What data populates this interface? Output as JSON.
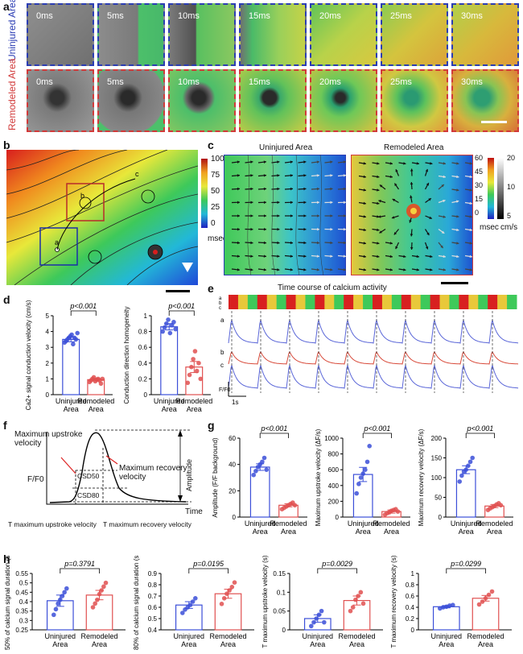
{
  "panel_a": {
    "label": "a",
    "rows": [
      {
        "name": "Uninjured Area",
        "color": "#2b3db3"
      },
      {
        "name": "Remodeled Area",
        "color": "#d23a3a"
      }
    ],
    "times": [
      "0ms",
      "5ms",
      "10ms",
      "15ms",
      "20ms",
      "25ms",
      "30ms"
    ]
  },
  "panel_b": {
    "label": "b",
    "colorbar_ticks": [
      "100",
      "75",
      "50",
      "25",
      "0"
    ],
    "colorbar_unit": "msec",
    "points": [
      "a",
      "b",
      "c"
    ]
  },
  "panel_c": {
    "label": "c",
    "left_title": "Uninjured Area",
    "right_title": "Remodeled Area",
    "cbar1_ticks": [
      "60",
      "45",
      "30",
      "15",
      "0"
    ],
    "cbar2_ticks": [
      "20",
      "10",
      "5"
    ],
    "cbar1_unit": "msec",
    "cbar2_unit": "cm/s"
  },
  "panel_d": {
    "label": "d"
  },
  "panel_e": {
    "label": "e",
    "title": "Time course of calcium activity",
    "trace_labels": [
      "a",
      "b",
      "c"
    ],
    "heat_labels": [
      "a",
      "b",
      "c"
    ],
    "ylabel": "F/F0",
    "scale": "1s"
  },
  "panel_f": {
    "label": "f",
    "upstroke": "Maximum upstroke velocity",
    "recovery": "Maximum recovery velocity",
    "amplitude": "Amplitude",
    "csd50": "CSD50",
    "csd80": "CSD80",
    "ylabel": "F/F0",
    "xlabel": "Time",
    "t_up": "T maximum upstroke velocity",
    "t_rec": "T maximum recovery velocity"
  },
  "panel_g": {
    "label": "g"
  },
  "panel_h": {
    "label": "h"
  },
  "chart_data": [
    {
      "id": "d1",
      "type": "bar",
      "categories": [
        "Uninjured Area",
        "Remodeled Area"
      ],
      "values": [
        3.5,
        0.95
      ],
      "errors": [
        0.15,
        0.08
      ],
      "ylabel": "Ca2+ signal conduction velocity (cm/s)",
      "ylim": [
        0,
        5
      ],
      "yticks": [
        0,
        1,
        2,
        3,
        4,
        5
      ],
      "pvalue": "p<0.001",
      "points": [
        [
          3.3,
          3.4,
          3.5,
          3.6,
          3.7,
          3.8,
          3.2,
          3.6,
          3.5,
          3.9
        ],
        [
          0.8,
          0.9,
          1.0,
          1.1,
          0.85,
          0.95,
          1.0,
          0.9,
          0.7,
          1.0
        ]
      ]
    },
    {
      "id": "d2",
      "type": "bar",
      "categories": [
        "Uninjured Area",
        "Remodeled Area"
      ],
      "values": [
        0.86,
        0.35
      ],
      "errors": [
        0.04,
        0.07
      ],
      "ylabel": "Conduction direction homogeneity",
      "ylim": [
        0,
        1.0
      ],
      "yticks": [
        0,
        0.2,
        0.4,
        0.6,
        0.8,
        1.0
      ],
      "pvalue": "p<0.001",
      "points": [
        [
          0.8,
          0.85,
          0.9,
          0.95,
          0.78,
          0.88,
          0.92,
          0.83
        ],
        [
          0.15,
          0.25,
          0.35,
          0.45,
          0.55,
          0.3,
          0.4,
          0.2
        ]
      ]
    },
    {
      "id": "g1",
      "type": "bar",
      "categories": [
        "Uninjured Area",
        "Remodeled Area"
      ],
      "values": [
        38,
        9
      ],
      "errors": [
        2.5,
        1.2
      ],
      "ylabel": "Amplitude (F/F background)",
      "ylim": [
        0,
        60
      ],
      "yticks": [
        0,
        20,
        40,
        60
      ],
      "pvalue": "p<0.001",
      "points": [
        [
          32,
          35,
          38,
          40,
          42,
          45,
          36
        ],
        [
          6,
          7,
          8,
          9,
          10,
          11,
          9
        ]
      ]
    },
    {
      "id": "g2",
      "type": "bar",
      "categories": [
        "Uninjured Area",
        "Remodeled Area"
      ],
      "values": [
        540,
        70
      ],
      "errors": [
        90,
        20
      ],
      "ylabel": "Maximum upstroke velocity (ΔF/s)",
      "ylim": [
        0,
        1000
      ],
      "yticks": [
        0,
        200,
        400,
        600,
        800,
        1000
      ],
      "pvalue": "p<0.001",
      "points": [
        [
          300,
          420,
          500,
          550,
          600,
          700,
          900
        ],
        [
          30,
          50,
          60,
          80,
          90,
          100,
          70
        ]
      ]
    },
    {
      "id": "g3",
      "type": "bar",
      "categories": [
        "Uninjured Area",
        "Remodeled Area"
      ],
      "values": [
        120,
        28
      ],
      "errors": [
        10,
        4
      ],
      "ylabel": "Maximum recovery velocity (ΔF/s)",
      "ylim": [
        0,
        200
      ],
      "yticks": [
        0,
        50,
        100,
        150,
        200
      ],
      "pvalue": "p<0.001",
      "points": [
        [
          90,
          105,
          115,
          120,
          130,
          140,
          150
        ],
        [
          18,
          22,
          25,
          28,
          32,
          35,
          30
        ]
      ]
    },
    {
      "id": "h1",
      "type": "bar",
      "categories": [
        "Uninjured Area",
        "Remodeled Area"
      ],
      "values": [
        0.405,
        0.435
      ],
      "errors": [
        0.03,
        0.025
      ],
      "ylabel": "50% of calcium signal duration (s)",
      "ylim": [
        0.25,
        0.55
      ],
      "yticks": [
        0.25,
        0.3,
        0.35,
        0.4,
        0.45,
        0.5,
        0.55
      ],
      "pvalue": "p=0.3791",
      "points": [
        [
          0.33,
          0.36,
          0.39,
          0.41,
          0.43,
          0.45,
          0.47
        ],
        [
          0.37,
          0.39,
          0.41,
          0.44,
          0.46,
          0.48,
          0.5
        ]
      ]
    },
    {
      "id": "h2",
      "type": "bar",
      "categories": [
        "Uninjured Area",
        "Remodeled Area"
      ],
      "values": [
        0.62,
        0.72
      ],
      "errors": [
        0.03,
        0.04
      ],
      "ylabel": "80% of calcium signal duration (s)",
      "ylim": [
        0.4,
        0.9
      ],
      "yticks": [
        0.4,
        0.5,
        0.6,
        0.7,
        0.8,
        0.9
      ],
      "pvalue": "p=0.0195",
      "points": [
        [
          0.55,
          0.58,
          0.6,
          0.62,
          0.65,
          0.68
        ],
        [
          0.63,
          0.68,
          0.72,
          0.75,
          0.78,
          0.82
        ]
      ]
    },
    {
      "id": "h3",
      "type": "bar",
      "categories": [
        "Uninjured Area",
        "Remodeled Area"
      ],
      "values": [
        0.03,
        0.078
      ],
      "errors": [
        0.01,
        0.012
      ],
      "ylabel": "T maximum upstroke velocity (s)",
      "ylim": [
        0,
        0.15
      ],
      "yticks": [
        0,
        0.05,
        0.1,
        0.15
      ],
      "pvalue": "p=0.0029",
      "points": [
        [
          0.01,
          0.02,
          0.03,
          0.04,
          0.05,
          0.02
        ],
        [
          0.05,
          0.06,
          0.08,
          0.09,
          0.1,
          0.07
        ]
      ]
    },
    {
      "id": "h4",
      "type": "bar",
      "categories": [
        "Uninjured Area",
        "Remodeled Area"
      ],
      "values": [
        0.41,
        0.56
      ],
      "errors": [
        0.02,
        0.05
      ],
      "ylabel": "T maximum recovery velocity (s)",
      "ylim": [
        0,
        1.0
      ],
      "yticks": [
        0,
        0.2,
        0.4,
        0.6,
        0.8,
        1.0
      ],
      "pvalue": "p=0.0299",
      "points": [
        [
          0.38,
          0.4,
          0.41,
          0.43,
          0.44
        ],
        [
          0.45,
          0.5,
          0.56,
          0.62,
          0.68
        ]
      ]
    }
  ]
}
